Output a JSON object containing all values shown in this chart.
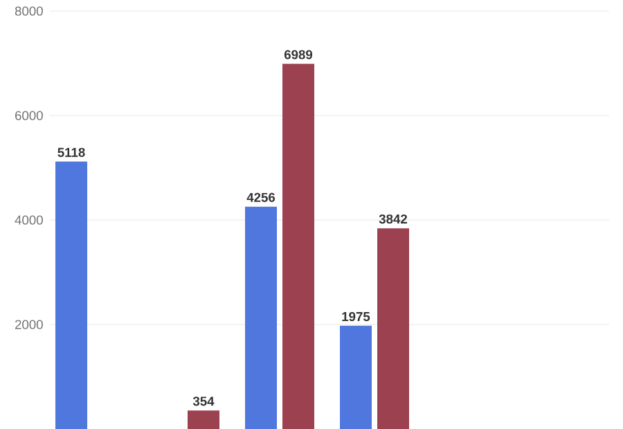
{
  "chart_data": {
    "type": "bar",
    "categories": [
      null,
      null,
      null,
      null,
      null,
      null
    ],
    "series": [
      {
        "color": "#4f77de",
        "values": [
          5118,
          null,
          4256,
          1975,
          null,
          null
        ]
      },
      {
        "color": "#9b4150",
        "values": [
          null,
          354,
          6989,
          3842,
          null,
          null
        ]
      }
    ],
    "ylim": [
      0,
      8000
    ],
    "yticks": [
      2000,
      4000,
      6000,
      8000
    ],
    "grid": "y",
    "data_labels": true
  }
}
